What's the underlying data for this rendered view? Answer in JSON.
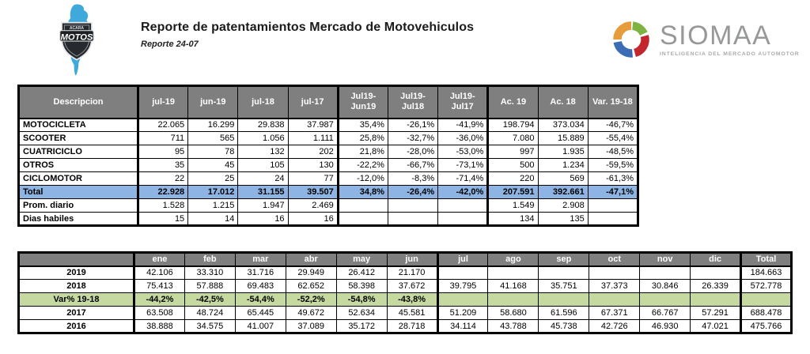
{
  "header": {
    "title": "Reporte de patentamientos Mercado de Motovehiculos",
    "subtitle": "Reporte 24-07",
    "acara_logo": {
      "top_text": "ACARA",
      "main_text": "MOTOS"
    },
    "siomaa_logo": {
      "name": "SIOMAA",
      "tagline": "INTELIGENCIA DEL MERCADO AUTOMOTOR"
    }
  },
  "colors": {
    "table_header_bg": "#7F7F7F",
    "total_row_bg": "#8DB4E2",
    "var_row_bg": "#C6D9A0",
    "map_blue": "#3FA9DC",
    "siomaa_orange": "#E79C3C",
    "siomaa_green": "#7FB341",
    "siomaa_red": "#C1272D",
    "siomaa_blue": "#3C6CB4",
    "siomaa_gray": "#96989A"
  },
  "table1": {
    "columns": [
      "Descripcion",
      "jul-19",
      "jun-19",
      "jul-18",
      "jul-17",
      "Jul19-\nJun19",
      "Jul19-\nJul18",
      "Jul19-\nJul17",
      "Ac. 19",
      "Ac. 18",
      "Var. 19-18"
    ],
    "group_starts": [
      1,
      5,
      8
    ],
    "rows": [
      {
        "label": "MOTOCICLETA",
        "style": "",
        "values": [
          "22.065",
          "16.299",
          "29.838",
          "37.987",
          "35,4%",
          "-26,1%",
          "-41,9%",
          "198.794",
          "373.034",
          "-46,7%"
        ]
      },
      {
        "label": "SCOOTER",
        "style": "",
        "values": [
          "711",
          "565",
          "1.056",
          "1.111",
          "25,8%",
          "-32,7%",
          "-36,0%",
          "7.080",
          "15.889",
          "-55,4%"
        ]
      },
      {
        "label": "CUATRICICLO",
        "style": "",
        "values": [
          "95",
          "78",
          "132",
          "202",
          "21,8%",
          "-28,0%",
          "-53,0%",
          "997",
          "1.935",
          "-48,5%"
        ]
      },
      {
        "label": "OTROS",
        "style": "",
        "values": [
          "35",
          "45",
          "105",
          "130",
          "-22,2%",
          "-66,7%",
          "-73,1%",
          "500",
          "1.234",
          "-59,5%"
        ]
      },
      {
        "label": "CICLOMOTOR",
        "style": "",
        "values": [
          "22",
          "25",
          "24",
          "77",
          "-12,0%",
          "-8,3%",
          "-71,4%",
          "220",
          "569",
          "-61,3%"
        ]
      },
      {
        "label": "Total",
        "style": "total",
        "values": [
          "22.928",
          "17.012",
          "31.155",
          "39.507",
          "34,8%",
          "-26,4%",
          "-42,0%",
          "207.591",
          "392.661",
          "-47,1%"
        ]
      },
      {
        "label": "Prom. diario",
        "style": "",
        "values": [
          "1.528",
          "1.215",
          "1.947",
          "2.469",
          "",
          "",
          "",
          "1.549",
          "2.908",
          ""
        ]
      },
      {
        "label": "Dias habiles",
        "style": "",
        "values": [
          "15",
          "14",
          "16",
          "16",
          "",
          "",
          "",
          "134",
          "135",
          ""
        ]
      }
    ]
  },
  "table2": {
    "columns": [
      "",
      "ene",
      "feb",
      "mar",
      "abr",
      "may",
      "jun",
      "jul",
      "ago",
      "sep",
      "oct",
      "nov",
      "dic",
      "Total"
    ],
    "group_starts": [
      1,
      7,
      13
    ],
    "rows": [
      {
        "label": "2019",
        "style": "",
        "values": [
          "42.106",
          "33.310",
          "31.716",
          "29.949",
          "26.412",
          "21.170",
          "",
          "",
          "",
          "",
          "",
          "",
          "184.663"
        ]
      },
      {
        "label": "2018",
        "style": "",
        "values": [
          "75.413",
          "57.888",
          "69.483",
          "62.652",
          "58.398",
          "37.672",
          "39.795",
          "41.168",
          "35.751",
          "37.373",
          "30.846",
          "26.339",
          "572.778"
        ]
      },
      {
        "label": "Var% 19-18",
        "style": "var",
        "values": [
          "-44,2%",
          "-42,5%",
          "-54,4%",
          "-52,2%",
          "-54,8%",
          "-43,8%",
          "",
          "",
          "",
          "",
          "",
          "",
          ""
        ]
      },
      {
        "label": "2017",
        "style": "",
        "values": [
          "63.508",
          "48.724",
          "65.445",
          "49.672",
          "52.634",
          "45.581",
          "51.209",
          "58.680",
          "61.596",
          "67.371",
          "66.767",
          "57.291",
          "688.478"
        ]
      },
      {
        "label": "2016",
        "style": "",
        "values": [
          "38.888",
          "34.575",
          "41.007",
          "37.089",
          "35.172",
          "28.718",
          "34.114",
          "43.788",
          "45.738",
          "42.726",
          "46.930",
          "47.021",
          "475.766"
        ]
      }
    ]
  }
}
